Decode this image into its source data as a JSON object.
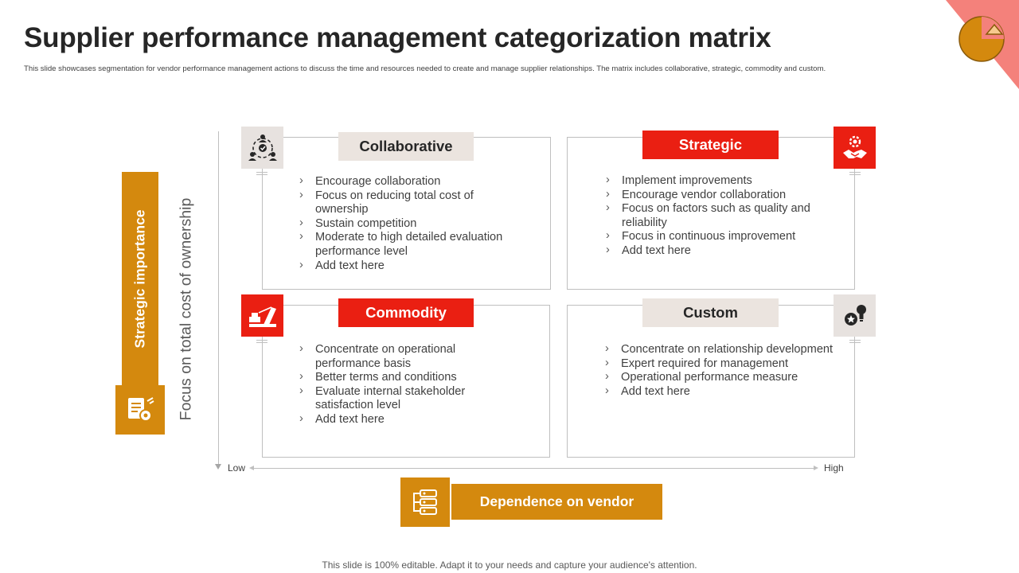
{
  "title": "Supplier performance management categorization matrix",
  "subtitle": "This slide showcases segmentation for vendor performance management actions to discuss the time and resources needed to create and manage supplier relationships. The matrix includes collaborative, strategic, commodity and custom.",
  "y_axis": {
    "bar_label": "Strategic importance",
    "axis_label": "Focus on total cost of ownership"
  },
  "x_axis": {
    "low": "Low",
    "high": "High",
    "bar_label": "Dependence on vendor"
  },
  "colors": {
    "accent": "#d4890e",
    "red": "#ea1f12",
    "grey": "#ebe4df",
    "corner": "#f4817b"
  },
  "quadrants": {
    "collaborative": {
      "label": "Collaborative",
      "icon": "team-network-icon",
      "items": [
        "Encourage collaboration",
        "Focus on reducing total cost of ownership",
        "Sustain competition",
        "Moderate to high detailed evaluation performance level",
        "Add text here"
      ]
    },
    "strategic": {
      "label": "Strategic",
      "icon": "handshake-gear-icon",
      "items": [
        "Implement improvements",
        "Encourage vendor collaboration",
        "Focus on factors such as quality and reliability",
        "Focus in continuous improvement",
        "Add text here"
      ]
    },
    "commodity": {
      "label": "Commodity",
      "icon": "crane-cargo-icon",
      "items": [
        "Concentrate on operational performance basis",
        "Better terms and conditions",
        "Evaluate internal stakeholder satisfaction level",
        "Add text here"
      ]
    },
    "custom": {
      "label": "Custom",
      "icon": "award-lightbulb-icon",
      "items": [
        "Concentrate on relationship development",
        "Expert required for management",
        "Operational performance measure",
        "Add text here"
      ]
    }
  },
  "footer": "This slide is 100% editable. Adapt it to your needs and capture your audience's attention."
}
